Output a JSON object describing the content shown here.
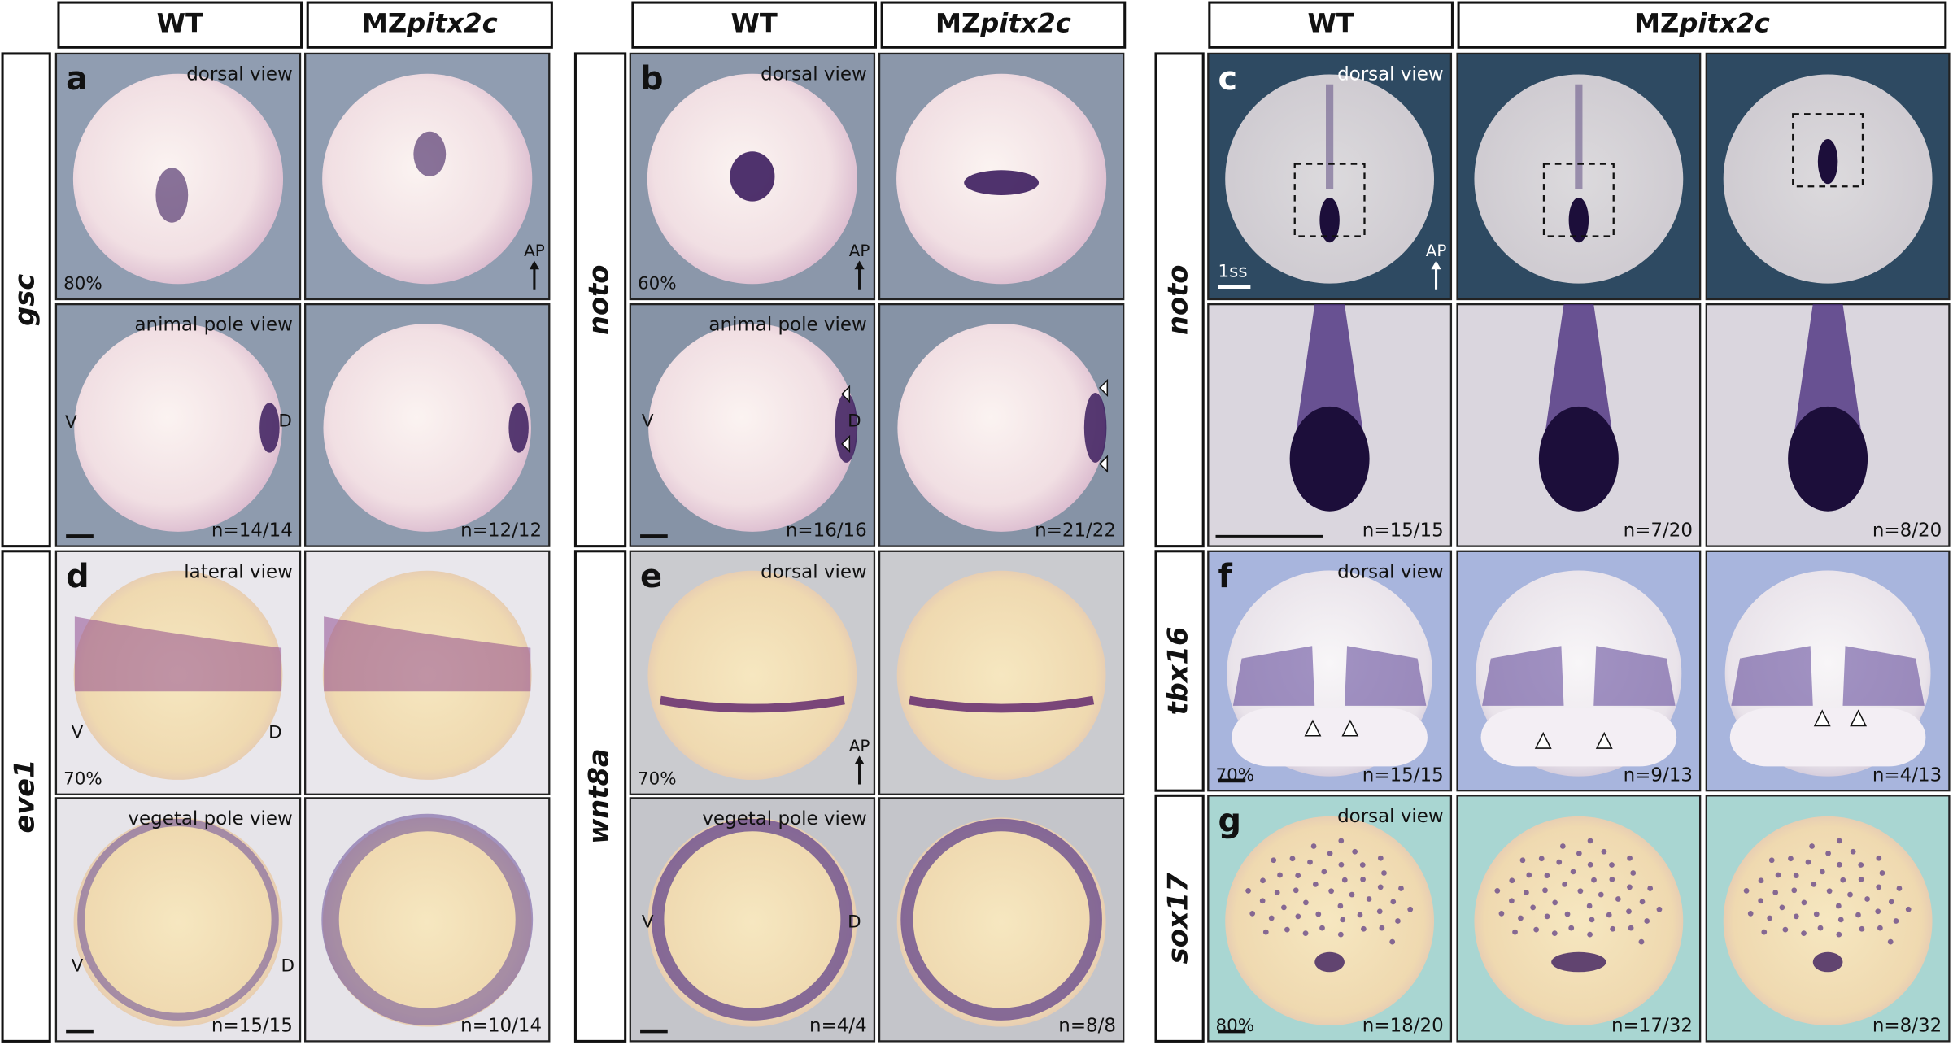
{
  "groups": [
    {
      "headers": [
        "WT",
        {
          "prefix": "MZ",
          "gene": "pitx2c"
        }
      ],
      "genes": [
        {
          "name": "gsc",
          "letter": "a",
          "views": [
            "dorsal view",
            "animal pole view"
          ],
          "stage": "80%",
          "axis": "AP",
          "markers": [
            "V",
            "D"
          ],
          "counts": [
            "n=14/14",
            "n=12/12"
          ]
        },
        {
          "name": "eve1",
          "letter": "d",
          "views": [
            "lateral view",
            "vegetal pole view"
          ],
          "stage": "70%",
          "markers": [
            "V",
            "D",
            "V",
            "D"
          ],
          "counts": [
            "n=15/15",
            "n=10/14"
          ]
        }
      ]
    },
    {
      "headers": [
        "WT",
        {
          "prefix": "MZ",
          "gene": "pitx2c"
        }
      ],
      "genes": [
        {
          "name": "noto",
          "letter": "b",
          "views": [
            "dorsal view",
            "animal pole view"
          ],
          "stage": "60%",
          "axis": "AP",
          "markers": [
            "V",
            "D"
          ],
          "counts": [
            "n=16/16",
            "n=21/22"
          ]
        },
        {
          "name": "wnt8a",
          "letter": "e",
          "views": [
            "dorsal view",
            "vegetal pole view"
          ],
          "stage": "70%",
          "axis": "AP",
          "markers": [
            "V",
            "D"
          ],
          "counts": [
            "n=4/4",
            "n=8/8"
          ]
        }
      ]
    },
    {
      "headers": [
        "WT",
        {
          "prefix": "MZ",
          "gene": "pitx2c"
        }
      ],
      "genes": [
        {
          "name": "noto",
          "letter": "c",
          "views": [
            "dorsal view"
          ],
          "scale": "1ss",
          "axis": "AP",
          "counts": [
            "n=15/15",
            "n=7/20",
            "n=8/20"
          ]
        },
        {
          "name": "tbx16",
          "letter": "f",
          "views": [
            "dorsal view"
          ],
          "stage": "70%",
          "counts": [
            "n=15/15",
            "n=9/13",
            "n=4/13"
          ]
        },
        {
          "name": "sox17",
          "letter": "g",
          "views": [
            "dorsal view"
          ],
          "stage": "80%",
          "counts": [
            "n=18/20",
            "n=17/32",
            "n=8/32"
          ]
        }
      ]
    }
  ]
}
